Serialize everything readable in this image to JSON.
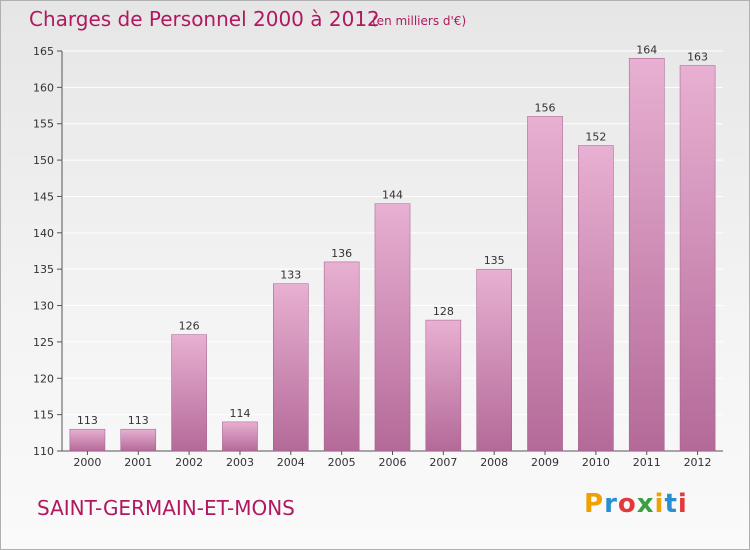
{
  "header": {
    "title": "Charges de Personnel 2000 à 2012",
    "subtitle": "(en milliers d'€)"
  },
  "footer": {
    "commune": "SAINT-GERMAIN-ET-MONS",
    "logo_letters": [
      "P",
      "r",
      "o",
      "x",
      "i",
      "t",
      "i"
    ],
    "logo_colors": [
      "#f0a000",
      "#2a8fd0",
      "#e03a3a",
      "#3aa040",
      "#f0a000",
      "#2a8fd0",
      "#e03a3a"
    ]
  },
  "colors": {
    "bar_top": "#e8b0d2",
    "bar_bottom": "#b46a99",
    "axis": "#555555",
    "grid": "#ffffff",
    "text": "#333333",
    "accent": "#b0185f"
  },
  "chart_data": {
    "type": "bar",
    "title": "Charges de Personnel 2000 à 2012",
    "subtitle": "(en milliers d'€)",
    "categories": [
      "2000",
      "2001",
      "2002",
      "2003",
      "2004",
      "2005",
      "2006",
      "2007",
      "2008",
      "2009",
      "2010",
      "2011",
      "2012"
    ],
    "values": [
      113,
      113,
      126,
      114,
      133,
      136,
      144,
      128,
      135,
      156,
      152,
      164,
      163
    ],
    "data_labels": [
      "113",
      "113",
      "126",
      "114",
      "133",
      "136",
      "144",
      "128",
      "135",
      "156",
      "152",
      "164",
      "163"
    ],
    "ylim": [
      110,
      165
    ],
    "yticks": [
      110,
      115,
      120,
      125,
      130,
      135,
      140,
      145,
      150,
      155,
      160,
      165
    ],
    "grid": true,
    "xlabel": "",
    "ylabel": ""
  }
}
